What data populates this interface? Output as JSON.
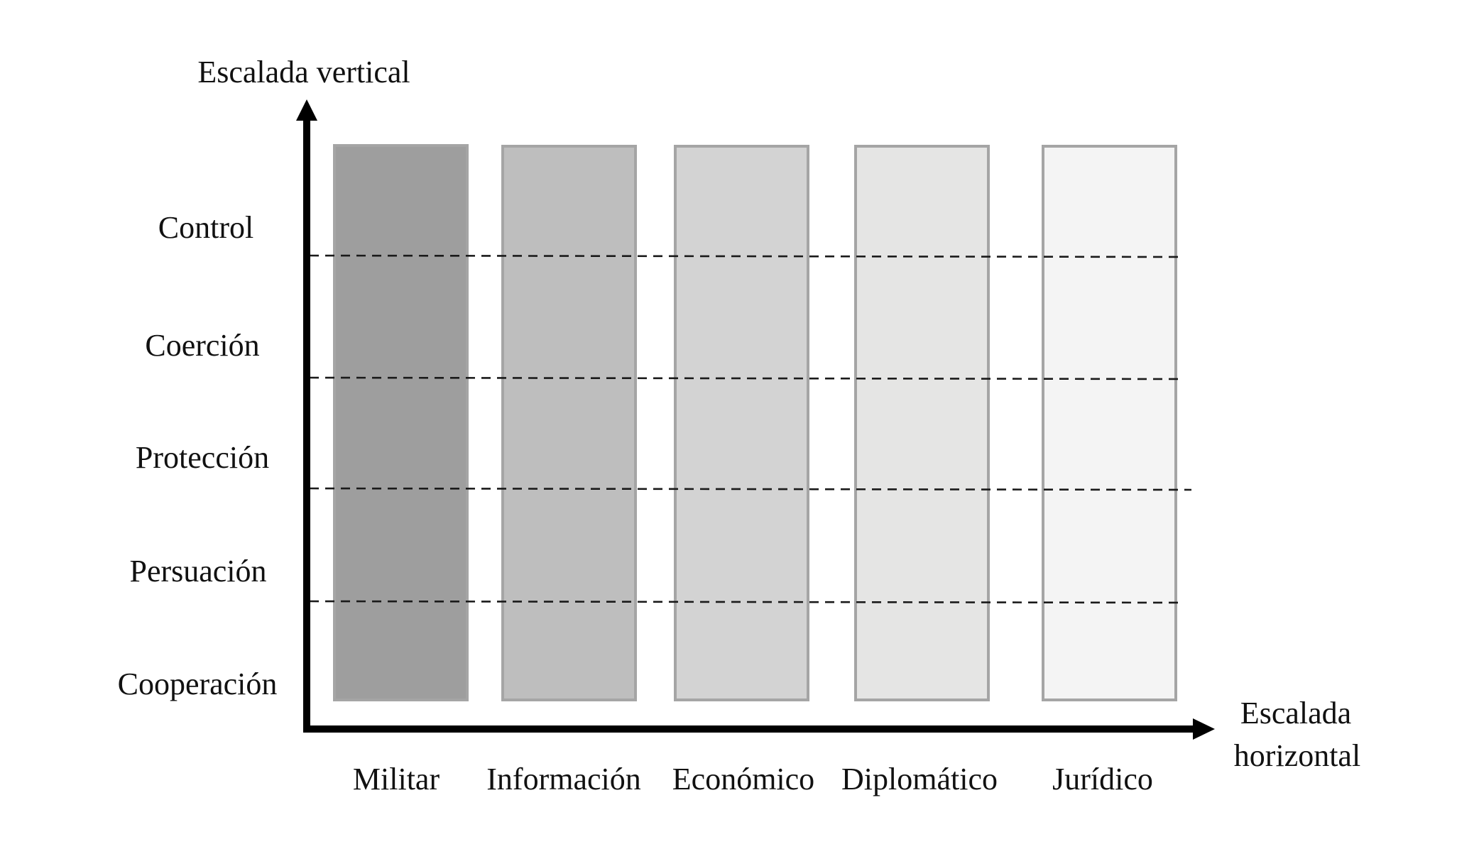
{
  "vertical_axis": {
    "label": "Escalada vertical"
  },
  "horizontal_axis": {
    "label_line1": "Escalada",
    "label_line2": "horizontal"
  },
  "levels": [
    {
      "label": "Control"
    },
    {
      "label": "Coerción"
    },
    {
      "label": "Protección"
    },
    {
      "label": "Persuación"
    },
    {
      "label": "Cooperación"
    }
  ],
  "categories": [
    {
      "label": "Militar",
      "fill": "#9e9e9e"
    },
    {
      "label": "Información",
      "fill": "#bebebe"
    },
    {
      "label": "Económico",
      "fill": "#d3d3d3"
    },
    {
      "label": "Diplomático",
      "fill": "#e5e5e4"
    },
    {
      "label": "Jurídico",
      "fill": "#f4f4f4"
    }
  ],
  "colors": {
    "axis": "#000000",
    "column_border": "#a5a5a5",
    "dash_line": "#1a1a1a"
  }
}
